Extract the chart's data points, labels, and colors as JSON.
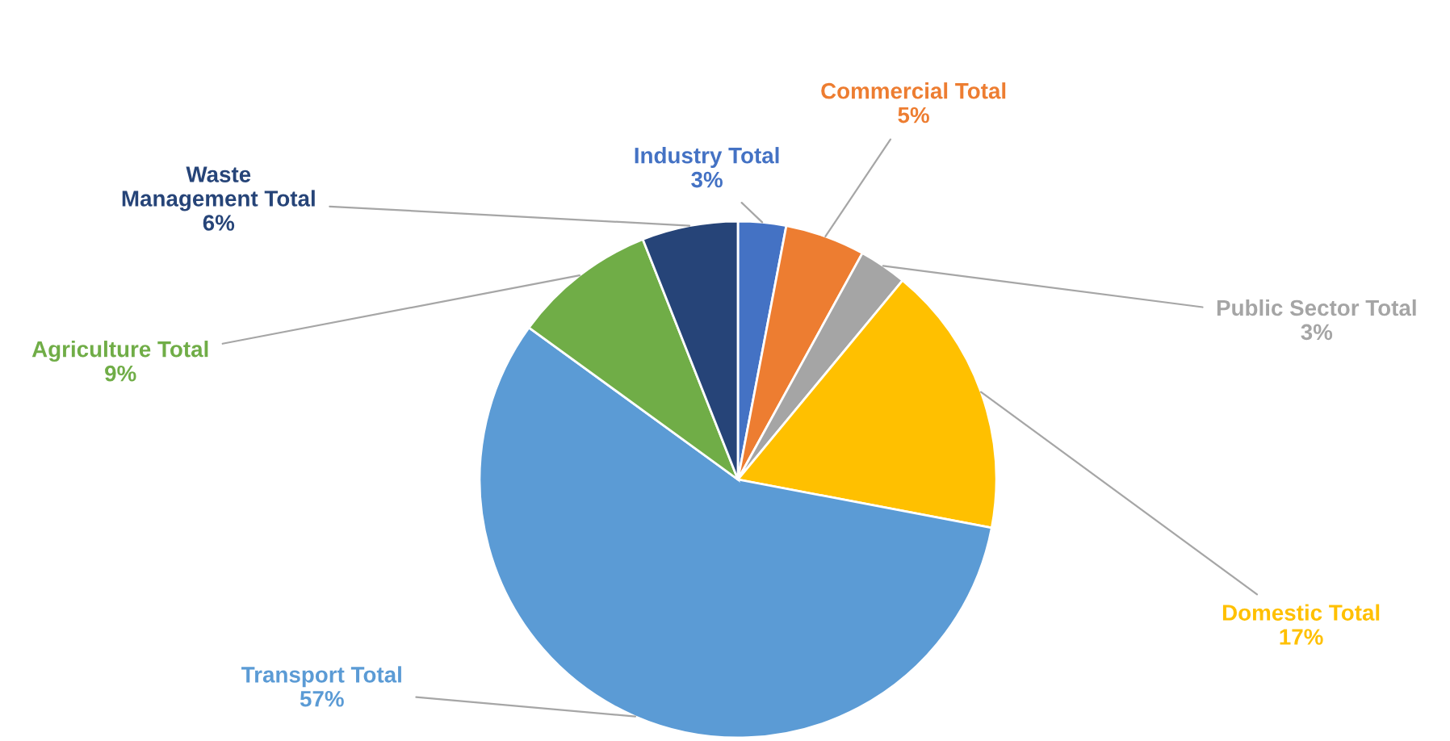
{
  "chart_data": {
    "type": "pie",
    "categories": [
      "Industry Total",
      "Commercial Total",
      "Public Sector Total",
      "Domestic Total",
      "Transport Total",
      "Agriculture Total",
      "Waste Management Total"
    ],
    "values": [
      3,
      5,
      3,
      17,
      57,
      9,
      6
    ],
    "colors": [
      "#4472c4",
      "#ed7d31",
      "#a5a5a5",
      "#ffc000",
      "#5b9bd5",
      "#70ad47",
      "#264478"
    ],
    "value_labels": [
      "3%",
      "5%",
      "3%",
      "17%",
      "57%",
      "9%",
      "6%"
    ],
    "legend": false
  }
}
